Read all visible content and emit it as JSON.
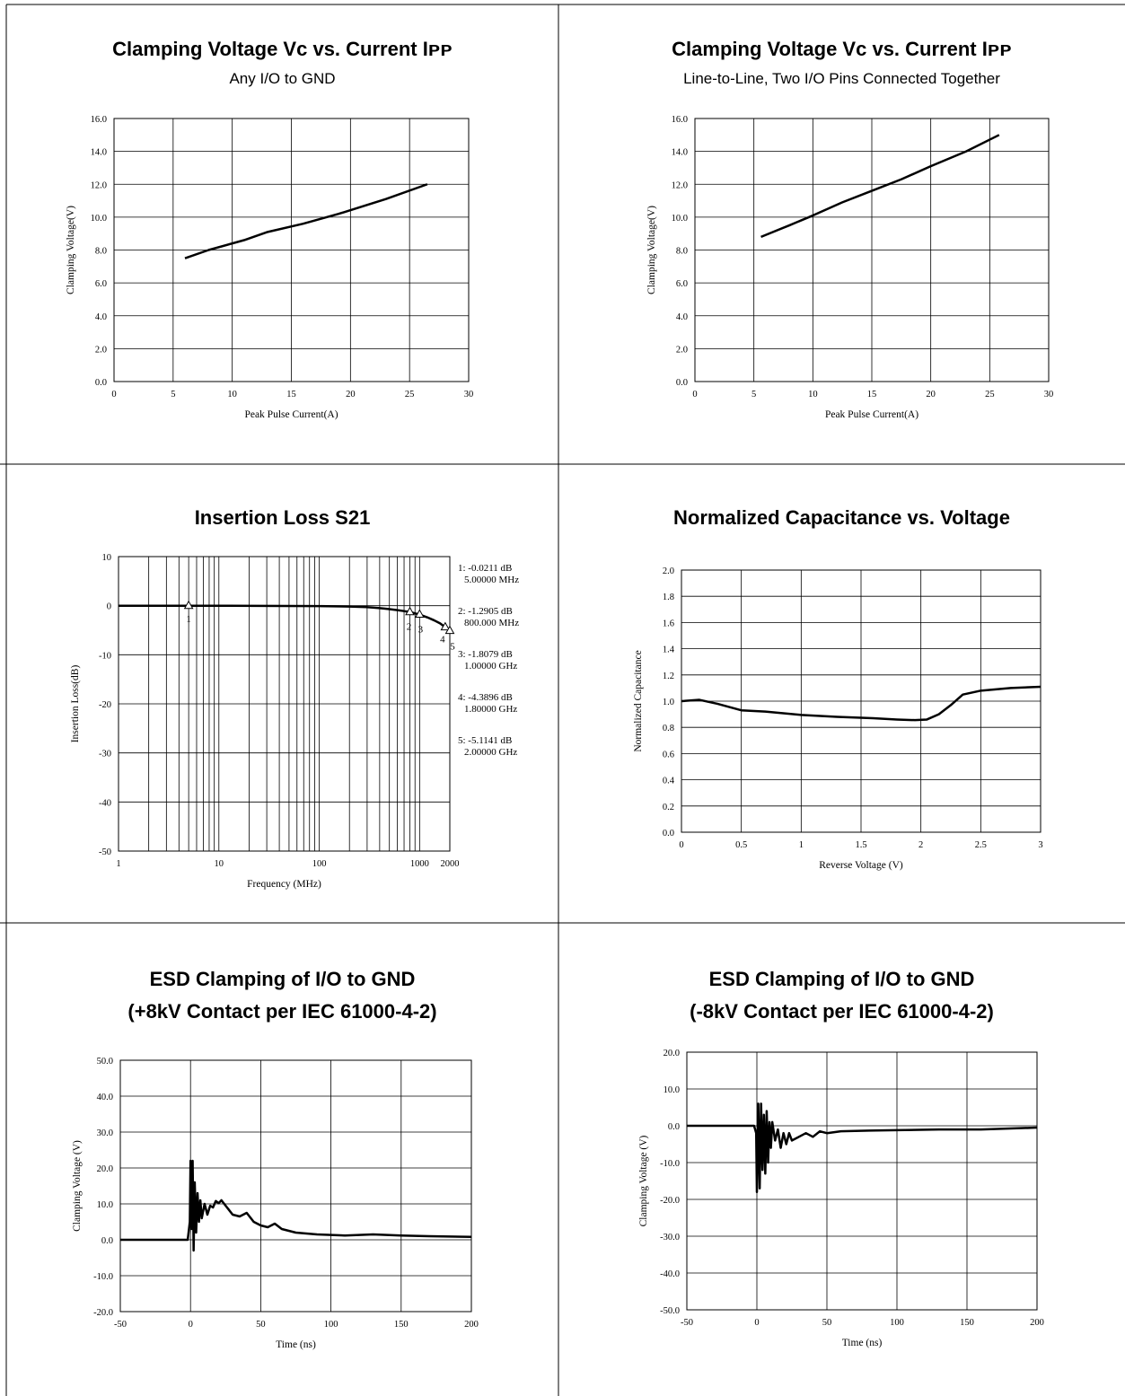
{
  "panels": [
    {
      "title": "Clamping Voltage Vᴄ vs. Current Iᴘᴘ",
      "subtitle": "Any I/O to GND",
      "chart_data": {
        "type": "line",
        "xlabel": "Peak Pulse Current(A)",
        "ylabel": "Clamping Voltage(V)",
        "xlim": [
          0,
          30
        ],
        "ylim": [
          0,
          16
        ],
        "xticks": [
          0,
          5,
          10,
          15,
          20,
          25,
          30
        ],
        "yticks": [
          0,
          2,
          4,
          6,
          8,
          10,
          12,
          14,
          16
        ],
        "xtick_labels": [
          "0",
          "5",
          "10",
          "15",
          "20",
          "25",
          "30"
        ],
        "ytick_labels": [
          "0.0",
          "2.0",
          "4.0",
          "6.0",
          "8.0",
          "10.0",
          "12.0",
          "14.0",
          "16.0"
        ],
        "grid": true,
        "series": [
          {
            "points": [
              [
                6,
                7.5
              ],
              [
                8,
                8.0
              ],
              [
                11,
                8.6
              ],
              [
                13,
                9.1
              ],
              [
                16,
                9.6
              ],
              [
                19,
                10.2
              ],
              [
                23,
                11.1
              ],
              [
                26.5,
                12.0
              ]
            ]
          }
        ]
      }
    },
    {
      "title": "Clamping Voltage Vᴄ vs. Current Iᴘᴘ",
      "subtitle": "Line-to-Line, Two I/O Pins Connected Together",
      "chart_data": {
        "type": "line",
        "xlabel": "Peak Pulse Current(A)",
        "ylabel": "Clamping Voltage(V)",
        "xlim": [
          0,
          30
        ],
        "ylim": [
          0,
          16
        ],
        "xticks": [
          0,
          5,
          10,
          15,
          20,
          25,
          30
        ],
        "yticks": [
          0,
          2,
          4,
          6,
          8,
          10,
          12,
          14,
          16
        ],
        "xtick_labels": [
          "0",
          "5",
          "10",
          "15",
          "20",
          "25",
          "30"
        ],
        "ytick_labels": [
          "0.0",
          "2.0",
          "4.0",
          "6.0",
          "8.0",
          "10.0",
          "12.0",
          "14.0",
          "16.0"
        ],
        "grid": true,
        "series": [
          {
            "points": [
              [
                5.6,
                8.8
              ],
              [
                8,
                9.5
              ],
              [
                10,
                10.1
              ],
              [
                12.5,
                10.9
              ],
              [
                15,
                11.6
              ],
              [
                17.5,
                12.3
              ],
              [
                20,
                13.1
              ],
              [
                23,
                14.0
              ],
              [
                25.8,
                15.0
              ]
            ]
          }
        ]
      }
    },
    {
      "title": "Insertion Loss S21",
      "chart_data": {
        "type": "line",
        "xscale": "log",
        "xlabel": "Frequency (MHz)",
        "ylabel": "Insertion Loss(dB)",
        "xlim": [
          1,
          2000
        ],
        "ylim": [
          -50,
          10
        ],
        "xticks": [
          1,
          10,
          100,
          1000,
          2000
        ],
        "yticks": [
          -50,
          -40,
          -30,
          -20,
          -10,
          0,
          10
        ],
        "xtick_labels": [
          "1",
          "10",
          "100",
          "1000",
          "2000"
        ],
        "ytick_labels": [
          "-50",
          "-40",
          "-30",
          "-20",
          "-10",
          "0",
          "10"
        ],
        "grid": true,
        "series": [
          {
            "points": [
              [
                1,
                -0.02
              ],
              [
                10,
                -0.02
              ],
              [
                50,
                -0.05
              ],
              [
                100,
                -0.08
              ],
              [
                200,
                -0.18
              ],
              [
                300,
                -0.3
              ],
              [
                400,
                -0.5
              ],
              [
                500,
                -0.7
              ],
              [
                600,
                -0.9
              ],
              [
                700,
                -1.1
              ],
              [
                800,
                -1.29
              ],
              [
                1000,
                -1.81
              ],
              [
                1200,
                -2.4
              ],
              [
                1400,
                -3.0
              ],
              [
                1600,
                -3.6
              ],
              [
                1800,
                -4.39
              ],
              [
                2000,
                -5.11
              ]
            ]
          }
        ],
        "markers": [
          {
            "id": "1",
            "freq": 5,
            "value": -0.0211
          },
          {
            "id": "2",
            "freq": 800,
            "value": -1.2905
          },
          {
            "id": "3",
            "freq": 1000,
            "value": -1.8079
          },
          {
            "id": "4",
            "freq": 1800,
            "value": -4.3896
          },
          {
            "id": "5",
            "freq": 2000,
            "value": -5.1141
          }
        ],
        "marker_legend": [
          {
            "line1": "1:  -0.0211 dB",
            "line2": "5.00000 MHz"
          },
          {
            "line1": "2:  -1.2905 dB",
            "line2": "800.000 MHz"
          },
          {
            "line1": "3:  -1.8079 dB",
            "line2": "1.00000 GHz"
          },
          {
            "line1": "4:  -4.3896 dB",
            "line2": "1.80000 GHz"
          },
          {
            "line1": "5:  -5.1141 dB",
            "line2": "2.00000 GHz"
          }
        ]
      }
    },
    {
      "title": "Normalized Capacitance vs. Voltage",
      "chart_data": {
        "type": "line",
        "xlabel": "Reverse Voltage (V)",
        "ylabel": "Normalized Capacitance",
        "xlim": [
          0,
          3
        ],
        "ylim": [
          0,
          2
        ],
        "xticks": [
          0,
          0.5,
          1,
          1.5,
          2,
          2.5,
          3
        ],
        "yticks": [
          0,
          0.2,
          0.4,
          0.6,
          0.8,
          1.0,
          1.2,
          1.4,
          1.6,
          1.8,
          2.0
        ],
        "xtick_labels": [
          "0",
          "0.5",
          "1",
          "1.5",
          "2",
          "2.5",
          "3"
        ],
        "ytick_labels": [
          "0.0",
          "0.2",
          "0.4",
          "0.6",
          "0.8",
          "1.0",
          "1.2",
          "1.4",
          "1.6",
          "1.8",
          "2.0"
        ],
        "grid": true,
        "series": [
          {
            "points": [
              [
                0,
                1.0
              ],
              [
                0.15,
                1.01
              ],
              [
                0.3,
                0.98
              ],
              [
                0.5,
                0.93
              ],
              [
                0.7,
                0.92
              ],
              [
                1.0,
                0.895
              ],
              [
                1.3,
                0.88
              ],
              [
                1.6,
                0.87
              ],
              [
                1.8,
                0.86
              ],
              [
                1.95,
                0.855
              ],
              [
                2.05,
                0.86
              ],
              [
                2.15,
                0.9
              ],
              [
                2.25,
                0.97
              ],
              [
                2.35,
                1.05
              ],
              [
                2.5,
                1.08
              ],
              [
                2.75,
                1.1
              ],
              [
                3.0,
                1.11
              ]
            ]
          }
        ]
      }
    },
    {
      "title": "ESD Clamping of I/O to GND",
      "subtitle": "(+8kV Contact per IEC 61000-4-2)",
      "chart_data": {
        "type": "line",
        "xlabel": "Time (ns)",
        "ylabel": "Clamping Voltage (V)",
        "xlim": [
          -50,
          200
        ],
        "ylim": [
          -20,
          50
        ],
        "xticks": [
          -50,
          0,
          50,
          100,
          150,
          200
        ],
        "yticks": [
          -20,
          -10,
          0,
          10,
          20,
          30,
          40,
          50
        ],
        "xtick_labels": [
          "-50",
          "0",
          "50",
          "100",
          "150",
          "200"
        ],
        "ytick_labels": [
          "-20.0",
          "-10.0",
          "0.0",
          "10.0",
          "20.0",
          "30.0",
          "40.0",
          "50.0"
        ],
        "grid": true,
        "series": [
          {
            "points": [
              [
                -50,
                0
              ],
              [
                -2,
                0
              ],
              [
                -0.5,
                5
              ],
              [
                0,
                22
              ],
              [
                0.8,
                3
              ],
              [
                1.5,
                22
              ],
              [
                2.2,
                -3
              ],
              [
                3,
                16
              ],
              [
                4,
                2
              ],
              [
                5,
                13
              ],
              [
                6,
                5
              ],
              [
                7,
                11
              ],
              [
                8,
                6
              ],
              [
                10,
                10
              ],
              [
                12,
                7
              ],
              [
                14,
                9.5
              ],
              [
                16,
                9
              ],
              [
                18,
                10.8
              ],
              [
                20,
                10.2
              ],
              [
                22,
                11
              ],
              [
                26,
                9
              ],
              [
                30,
                7
              ],
              [
                35,
                6.5
              ],
              [
                40,
                7.5
              ],
              [
                45,
                5
              ],
              [
                50,
                4
              ],
              [
                55,
                3.5
              ],
              [
                60,
                4.5
              ],
              [
                65,
                3
              ],
              [
                75,
                2
              ],
              [
                90,
                1.5
              ],
              [
                110,
                1.2
              ],
              [
                130,
                1.5
              ],
              [
                150,
                1.2
              ],
              [
                170,
                1.0
              ],
              [
                200,
                0.8
              ]
            ]
          }
        ]
      }
    },
    {
      "title": "ESD Clamping of I/O to GND",
      "subtitle": "(-8kV Contact per IEC 61000-4-2)",
      "chart_data": {
        "type": "line",
        "xlabel": "Time (ns)",
        "ylabel": "Clamping Voltage (V)",
        "xlim": [
          -50,
          200
        ],
        "ylim": [
          -50,
          20
        ],
        "xticks": [
          -50,
          0,
          50,
          100,
          150,
          200
        ],
        "yticks": [
          -50,
          -40,
          -30,
          -20,
          -10,
          0,
          10,
          20
        ],
        "xtick_labels": [
          "-50",
          "0",
          "50",
          "100",
          "150",
          "200"
        ],
        "ytick_labels": [
          "-50.0",
          "-40.0",
          "-30.0",
          "-20.0",
          "-10.0",
          "0.0",
          "10.0",
          "20.0"
        ],
        "grid": true,
        "series": [
          {
            "points": [
              [
                -50,
                0
              ],
              [
                -2,
                0
              ],
              [
                -0.5,
                -2
              ],
              [
                0,
                -18
              ],
              [
                1,
                6
              ],
              [
                2,
                -17
              ],
              [
                3,
                6
              ],
              [
                4,
                -12
              ],
              [
                5,
                3
              ],
              [
                6,
                -13
              ],
              [
                7,
                4
              ],
              [
                8,
                -10
              ],
              [
                9,
                1
              ],
              [
                10,
                -6
              ],
              [
                11,
                1
              ],
              [
                13,
                -4
              ],
              [
                15,
                -1
              ],
              [
                17,
                -6
              ],
              [
                19,
                -2
              ],
              [
                21,
                -5
              ],
              [
                23,
                -2
              ],
              [
                25,
                -4
              ],
              [
                30,
                -3
              ],
              [
                35,
                -2
              ],
              [
                40,
                -3
              ],
              [
                45,
                -1.5
              ],
              [
                50,
                -2
              ],
              [
                60,
                -1.5
              ],
              [
                80,
                -1.3
              ],
              [
                100,
                -1.2
              ],
              [
                130,
                -1.0
              ],
              [
                160,
                -1.0
              ],
              [
                200,
                -0.5
              ]
            ]
          }
        ]
      }
    }
  ]
}
